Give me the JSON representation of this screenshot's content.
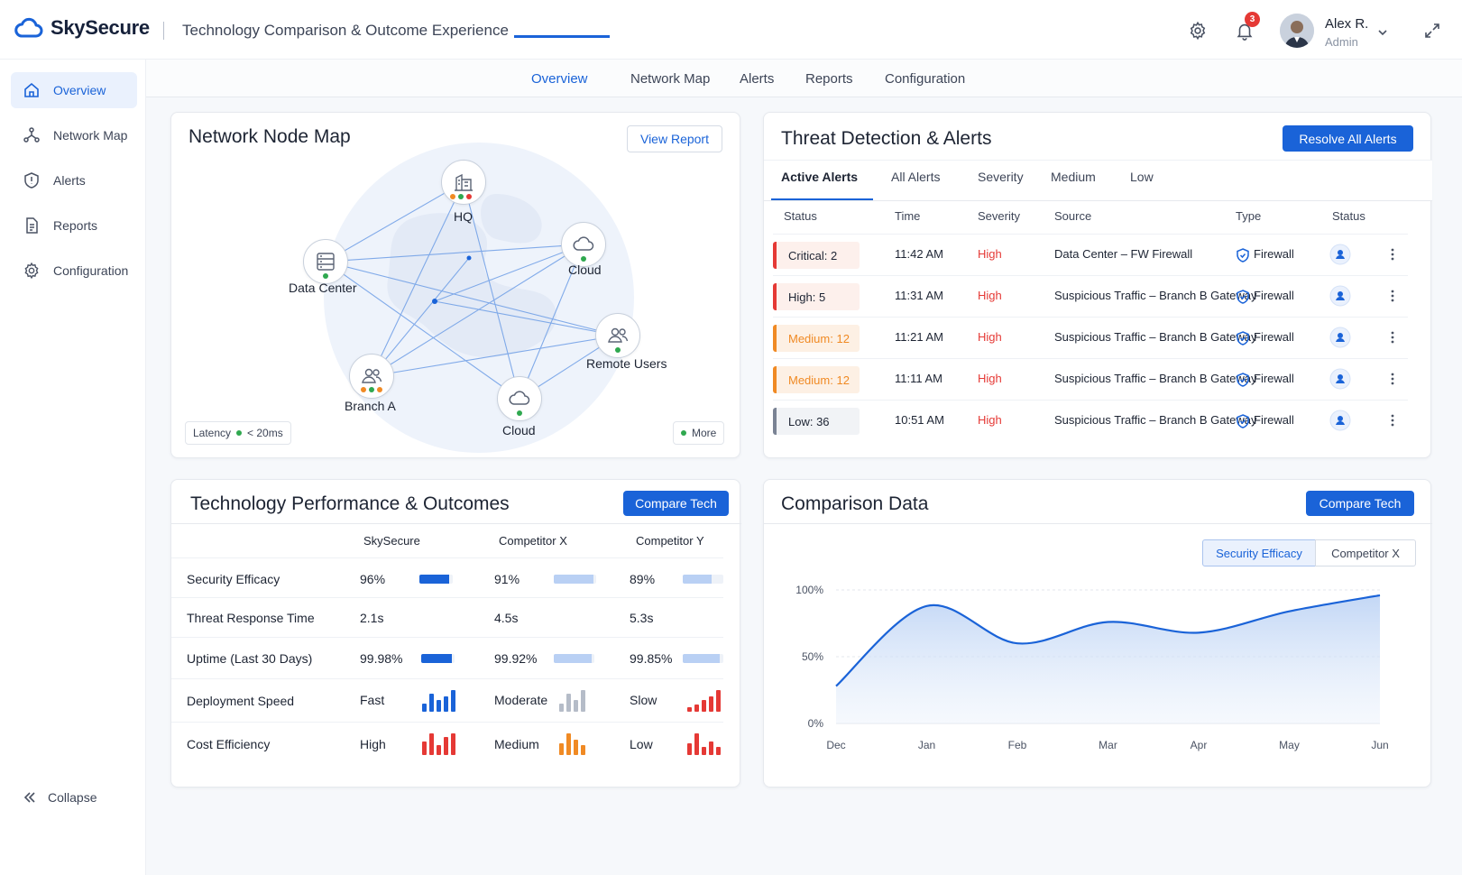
{
  "app": {
    "name": "SkySecure",
    "subtitle": "Technology Comparison & Outcome Experience"
  },
  "header": {
    "notifications_count": "3",
    "user_name": "Alex R.",
    "user_role": "Admin"
  },
  "sidebar": {
    "items": [
      {
        "label": "Overview",
        "icon": "home-icon",
        "active": true
      },
      {
        "label": "Network Map",
        "icon": "network-icon"
      },
      {
        "label": "Alerts",
        "icon": "shield-alert-icon"
      },
      {
        "label": "Reports",
        "icon": "document-icon"
      },
      {
        "label": "Configuration",
        "icon": "gear-icon"
      }
    ],
    "collapse_label": "Collapse"
  },
  "tabs": [
    {
      "label": "Overview",
      "active": true
    },
    {
      "label": "Network Map"
    },
    {
      "label": "Alerts"
    },
    {
      "label": "Reports"
    },
    {
      "label": "Configuration"
    }
  ],
  "network_map": {
    "title": "Network Node Map",
    "view_report": "View Report",
    "nodes": {
      "hq": "HQ",
      "datacenter": "Data Center",
      "cloud_top": "Cloud",
      "remote": "Remote Users",
      "branch": "Branch A",
      "cloud_bottom": "Cloud"
    },
    "latency_label": "Latency",
    "latency_value": "< 20ms",
    "more_label": "More"
  },
  "threats": {
    "title": "Threat Detection & Alerts",
    "resolve_all": "Resolve All Alerts",
    "subtabs": [
      "Active Alerts",
      "All Alerts",
      "Severity",
      "Medium",
      "Low"
    ],
    "columns": [
      "Status",
      "Time",
      "Severity",
      "Source",
      "Type",
      "Status"
    ],
    "rows": [
      {
        "status": "Critical: 2",
        "time": "11:42 AM",
        "severity": "High",
        "source": "Data Center – FW Firewall",
        "type": "Firewall"
      },
      {
        "status": "High: 5",
        "time": "11:31 AM",
        "severity": "High",
        "source": "Suspicious Traffic – Branch B Gateway",
        "type": "Firewall"
      },
      {
        "status": "Medium: 12",
        "time": "11:21 AM",
        "severity": "High",
        "source": "Suspicious Traffic – Branch B Gateway",
        "type": "Firewall"
      },
      {
        "status": "Medium: 12",
        "time": "11:11 AM",
        "severity": "High",
        "source": "Suspicious Traffic – Branch B Gateway",
        "type": "Firewall"
      },
      {
        "status": "Low: 36",
        "time": "10:51 AM",
        "severity": "High",
        "source": "Suspicious Traffic – Branch B Gateway",
        "type": "Firewall"
      }
    ],
    "colors": {
      "critical": "#e53935",
      "high": "#e53935",
      "medium": "#f08a24",
      "low": "#7a8394"
    }
  },
  "performance": {
    "title": "Technology Performance & Outcomes",
    "compare_label": "Compare Tech",
    "columns": [
      "SkySecure",
      "Competitor X",
      "Competitor Y"
    ],
    "rows": [
      {
        "label": "Security Efficacy",
        "values": [
          "96%",
          "91%",
          "89%"
        ]
      },
      {
        "label": "Threat Response Time",
        "values": [
          "2.1s",
          "4.5s",
          "5.3s"
        ]
      },
      {
        "label": "Uptime (Last 30 Days)",
        "values": [
          "99.98%",
          "99.92%",
          "99.85%"
        ]
      },
      {
        "label": "Deployment Speed",
        "values": [
          "Fast",
          "Moderate",
          "Slow"
        ]
      },
      {
        "label": "Cost Efficiency",
        "values": [
          "High",
          "Medium",
          "Low"
        ]
      }
    ]
  },
  "comparison": {
    "title": "Comparison Data",
    "compare_label": "Compare Tech",
    "segments": [
      "Security Efficacy",
      "Competitor X"
    ]
  },
  "chart_data": {
    "type": "area",
    "title": "",
    "x": [
      "Dec",
      "Jan",
      "Feb",
      "Mar",
      "Apr",
      "May",
      "Jun"
    ],
    "y_ticks": [
      "0%",
      "50%",
      "100%"
    ],
    "ylim": [
      0,
      100
    ],
    "series": [
      {
        "values": [
          28,
          88,
          60,
          76,
          68,
          84,
          96
        ]
      }
    ],
    "accent": "#1a63d8"
  }
}
